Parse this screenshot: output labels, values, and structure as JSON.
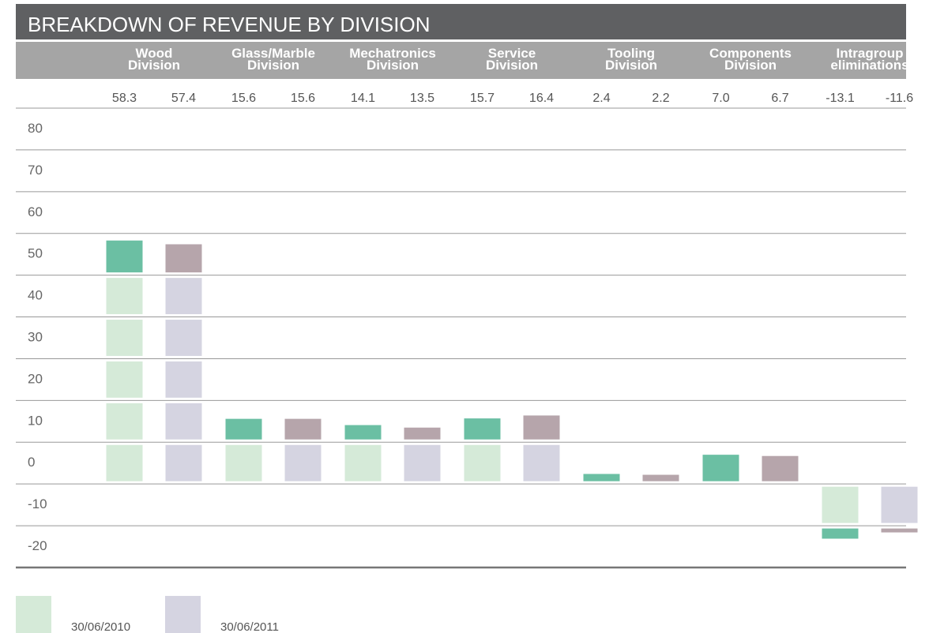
{
  "chart_data": {
    "type": "block_bar",
    "title": "BREAKDOWN OF REVENUE BY DIVISION",
    "categories": [
      "Wood\nDivision",
      "Glass/Marble\nDivision",
      "Mechatronics\nDivision",
      "Service\nDivision",
      "Tooling\nDivision",
      "Components\nDivision",
      "Intragroup\neliminations"
    ],
    "series": [
      {
        "name": "30/06/2010",
        "color": "#d5ead8",
        "accent_color": "#6bbfa3",
        "values": [
          58.3,
          15.6,
          14.1,
          15.7,
          2.4,
          7.0,
          -13.1
        ],
        "value_labels": [
          "58.3",
          "15.6",
          "14.1",
          "15.7",
          "2.4",
          "7.0",
          "-13.1"
        ]
      },
      {
        "name": "30/06/2011",
        "color": "#d5d4e1",
        "accent_color": "#b6a5ab",
        "values": [
          57.4,
          15.6,
          13.5,
          16.4,
          2.2,
          6.7,
          -11.6
        ],
        "value_labels": [
          "57.4",
          "15.6",
          "13.5",
          "16.4",
          "2.2",
          "6.7",
          "-11.6"
        ]
      }
    ],
    "ylim": [
      -20,
      90
    ],
    "yticks": [
      -20,
      -10,
      0,
      10,
      20,
      30,
      40,
      50,
      60,
      70,
      80
    ],
    "grid": true
  }
}
